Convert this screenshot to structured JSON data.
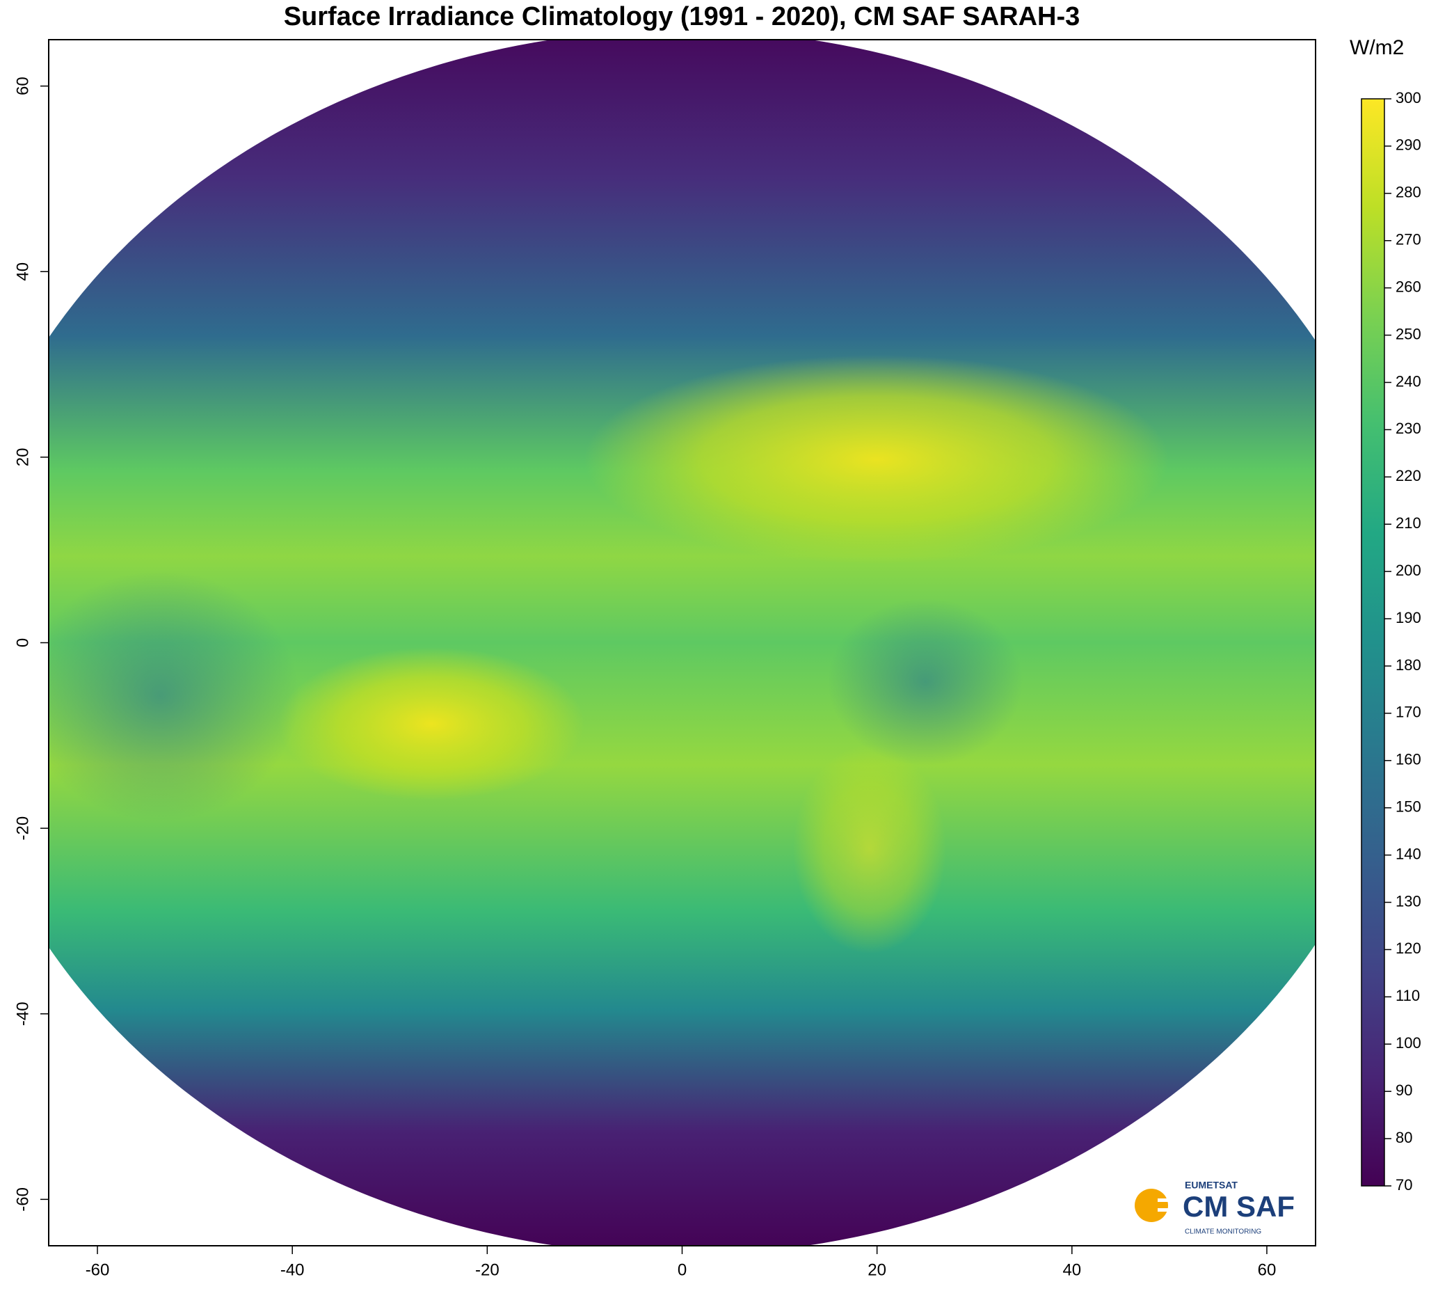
{
  "title": "Surface Irradiance Climatology (1991 - 2020),  CM SAF SARAH-3",
  "x_axis": {
    "xlim": [
      -65,
      65
    ],
    "ticks": [
      -60,
      -40,
      -20,
      0,
      20,
      40,
      60
    ]
  },
  "y_axis": {
    "ylim": [
      -65,
      65
    ],
    "ticks": [
      -60,
      -40,
      -20,
      0,
      20,
      40,
      60
    ]
  },
  "colorbar": {
    "unit": "W/m2",
    "ticks": [
      70,
      80,
      90,
      100,
      110,
      120,
      130,
      140,
      150,
      160,
      170,
      180,
      190,
      200,
      210,
      220,
      230,
      240,
      250,
      260,
      270,
      280,
      290,
      300
    ]
  },
  "logo": {
    "org": "EUMETSAT",
    "name": "CM SAF",
    "tagline": "CLIMATE MONITORING"
  }
}
